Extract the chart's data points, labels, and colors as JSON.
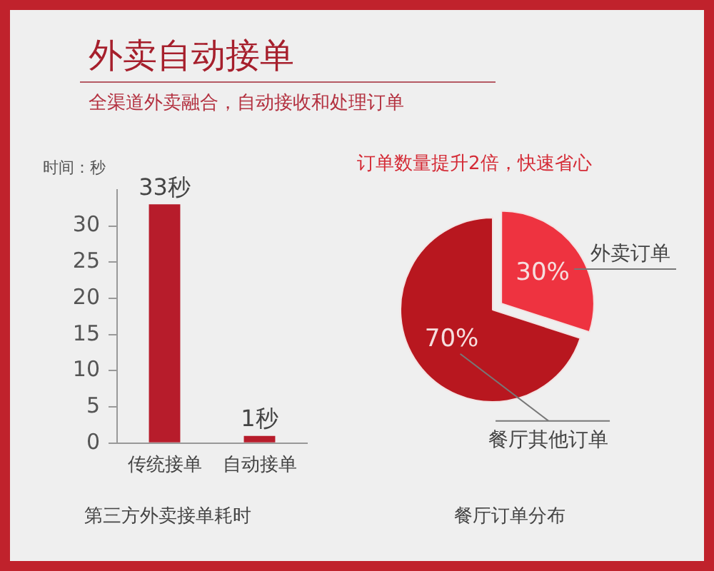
{
  "chart_data": [
    {
      "type": "other",
      "title": "外卖自动接单",
      "subtitle": "全渠道外卖融合，自动接收和处理订单"
    },
    {
      "type": "bar",
      "title": "第三方外卖接单耗时",
      "ylabel": "时间：秒",
      "categories": [
        "传统接单",
        "自动接单"
      ],
      "values": [
        33,
        1
      ],
      "color": "#b71c2b",
      "ylim": [
        0,
        35
      ],
      "yticks": [
        0,
        5,
        10,
        15,
        20,
        25,
        30
      ],
      "value_labels": [
        "33秒",
        "1秒"
      ]
    },
    {
      "type": "pie",
      "title": "餐厅订单分布",
      "annotations": [
        "订单数量提升2倍，快速省心"
      ],
      "categories": [
        "外卖订单",
        "餐厅其他订单"
      ],
      "values": [
        30,
        70
      ],
      "colors": [
        "#ee3340",
        "#b8171f"
      ],
      "value_labels": [
        "30%",
        "70%"
      ]
    }
  ]
}
